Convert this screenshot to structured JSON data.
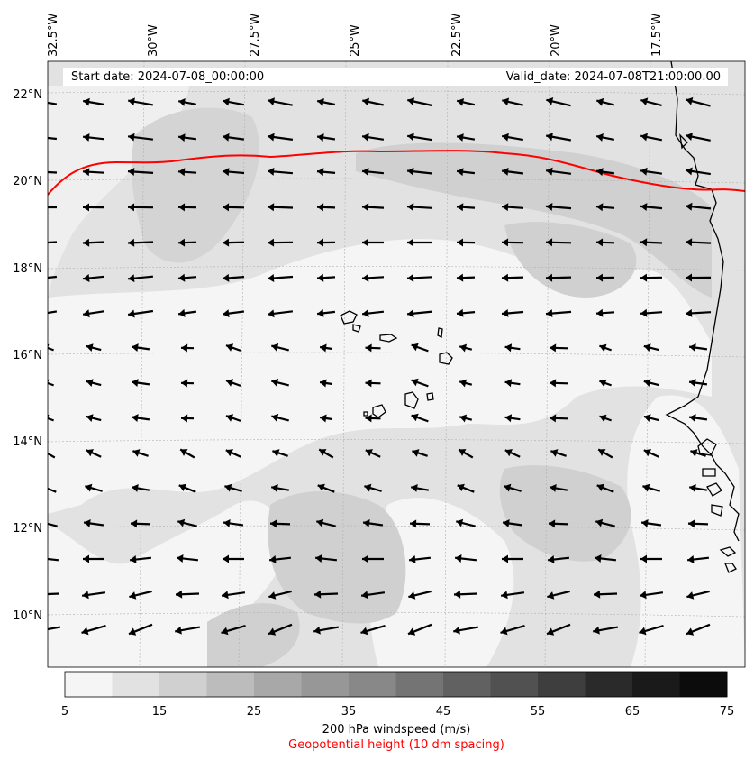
{
  "map": {
    "start_date": "Start date: 2024-07-08_00:00:00",
    "valid_date": "Valid_date: 2024-07-08T21:00:00.00",
    "lon_labels": [
      "32.5°W",
      "30°W",
      "27.5°W",
      "25°W",
      "22.5°W",
      "20°W",
      "17.5°W"
    ],
    "lat_labels": [
      "22°N",
      "20°N",
      "18°N",
      "16°N",
      "14°N",
      "12°N",
      "10°N"
    ],
    "colors": {
      "arrows": "#000000",
      "coastline": "#000000",
      "geopotential": "#ff0000",
      "grid": "#b0b0b0"
    }
  },
  "colorbar": {
    "ticks": [
      "5",
      "15",
      "25",
      "35",
      "45",
      "55",
      "65",
      "75"
    ],
    "colors": [
      "#f5f5f5",
      "#e2e2e2",
      "#d0d0d0",
      "#bcbcbc",
      "#a8a8a8",
      "#979797",
      "#888888",
      "#747474",
      "#616161",
      "#515151",
      "#3e3e3e",
      "#2a2a2a",
      "#1a1a1a",
      "#0c0c0c"
    ],
    "label": "200 hPa windspeed (m/s)",
    "sublabel": "Geopotential height (10 dm spacing)",
    "sublabel_color": "#ff0000"
  }
}
